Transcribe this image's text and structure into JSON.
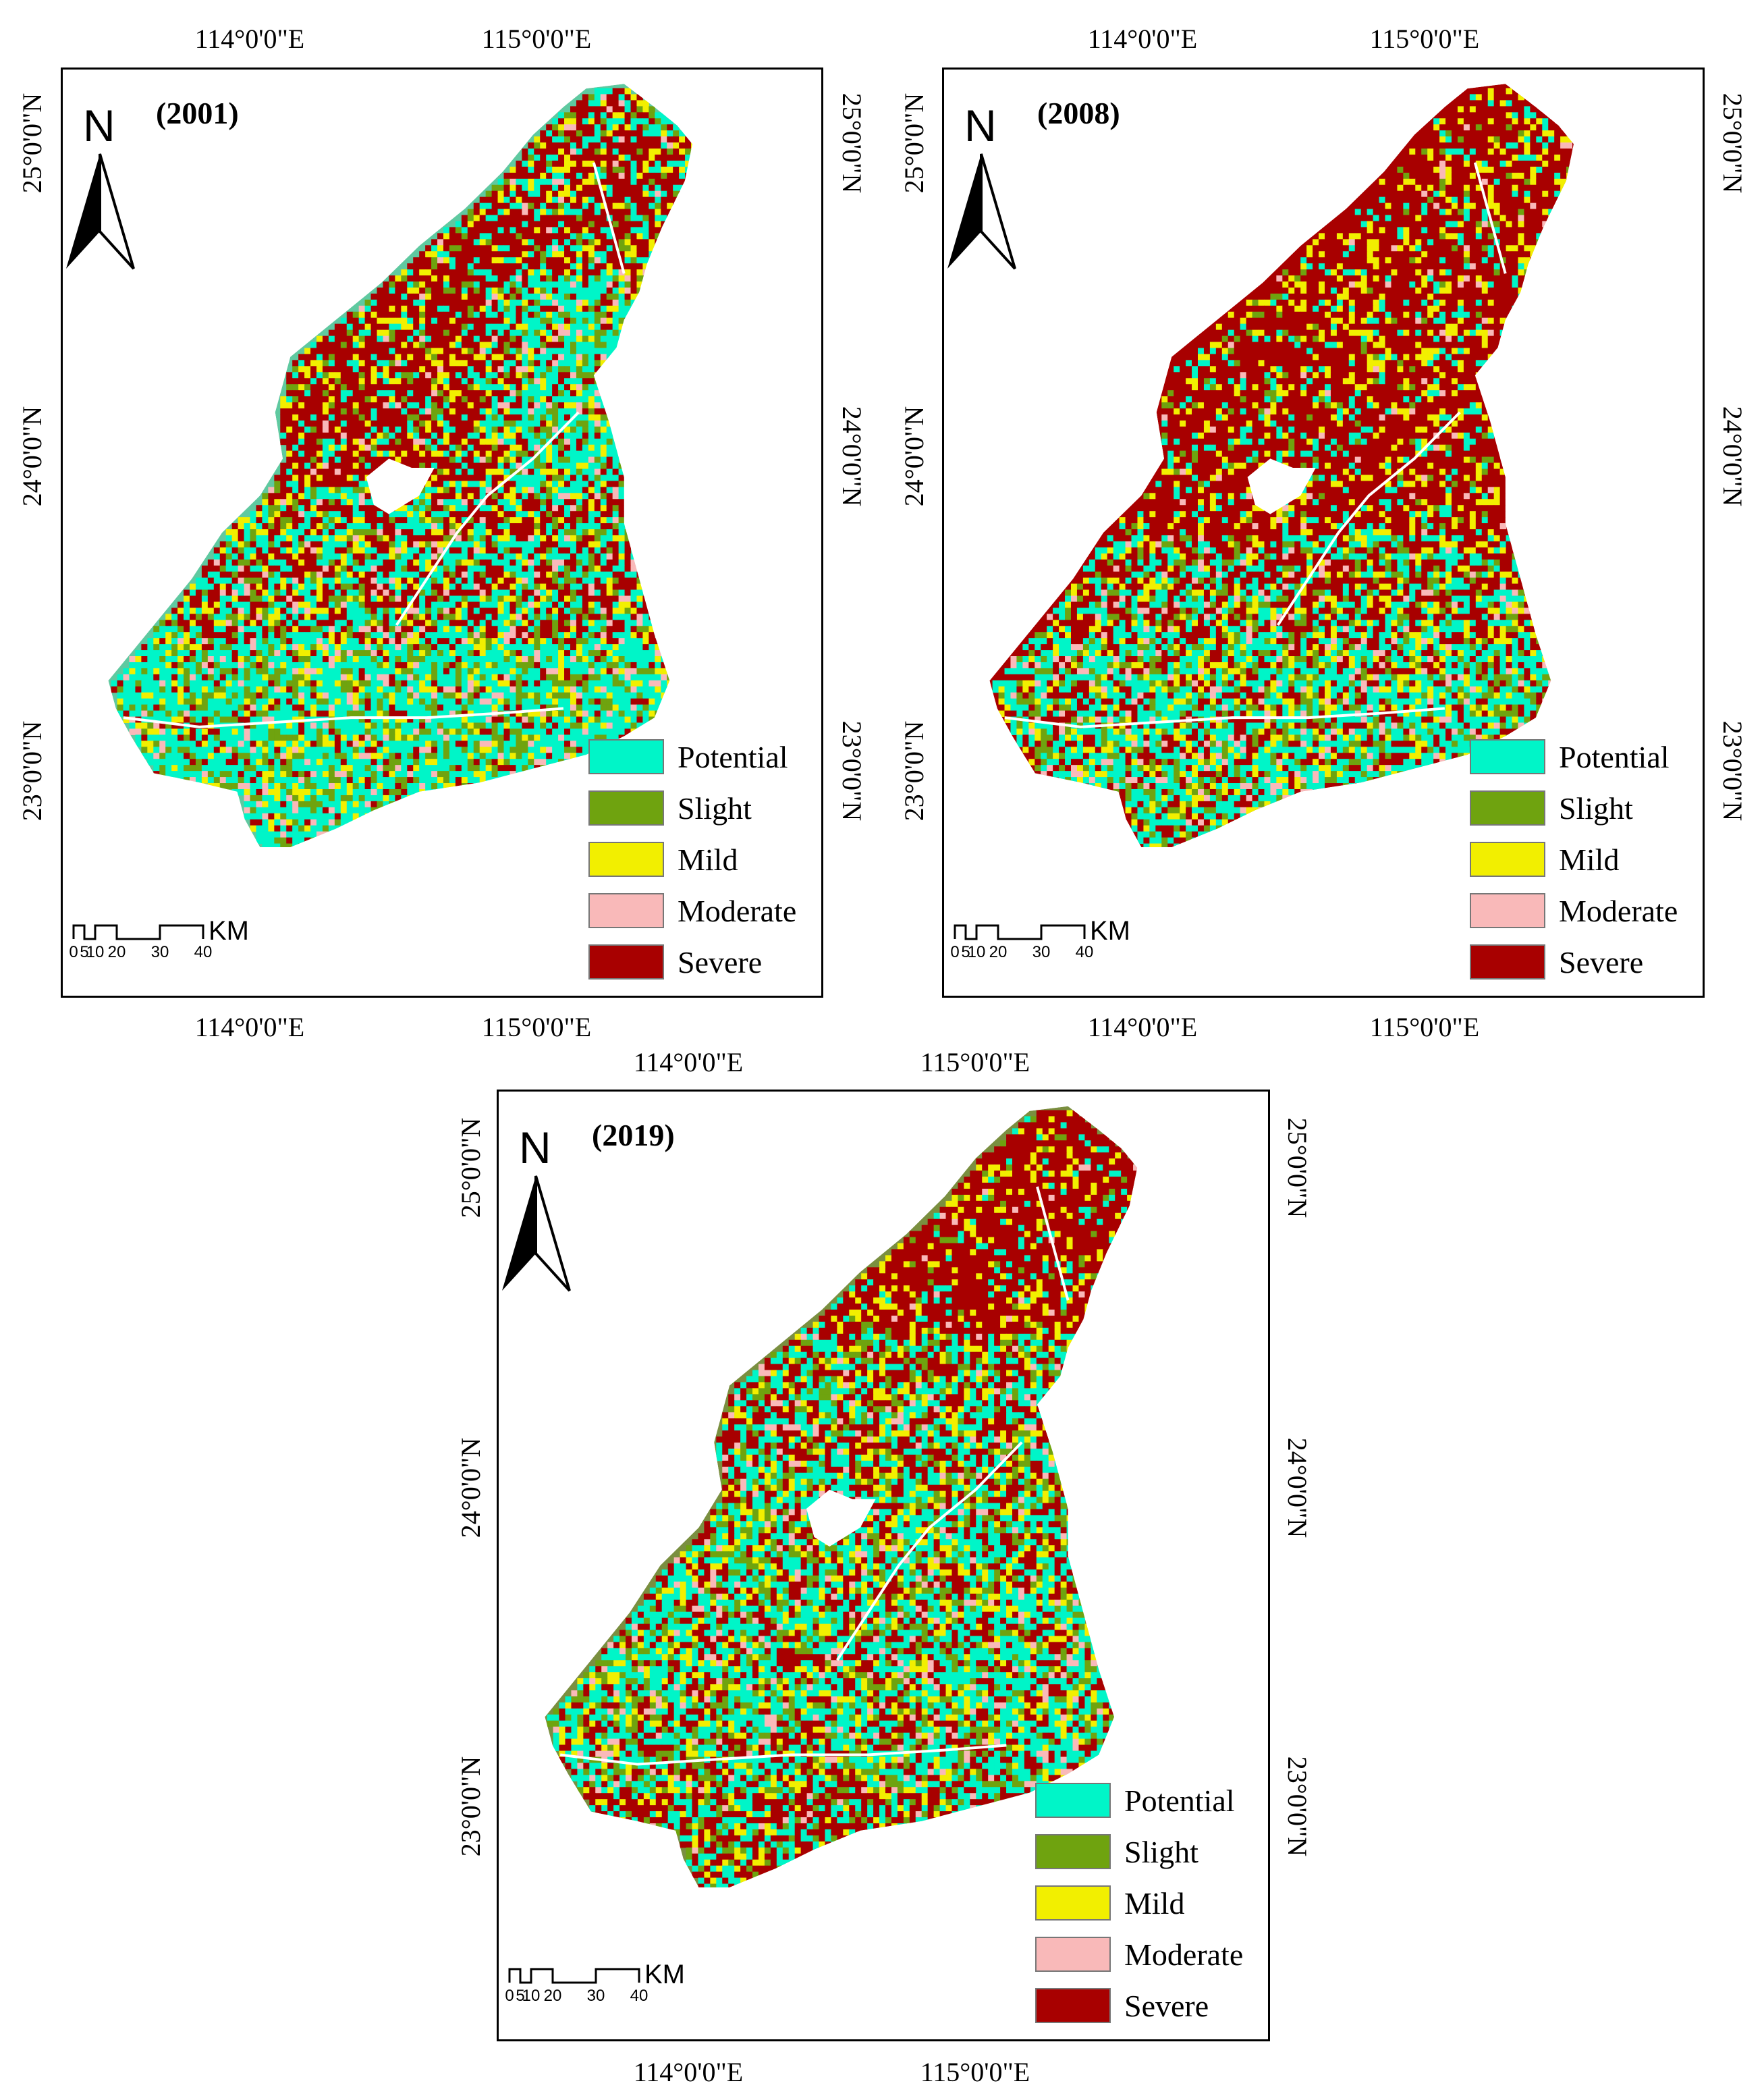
{
  "colors": {
    "potential": "#00f5c8",
    "slight": "#6fa30f",
    "mild": "#f2ef00",
    "moderate": "#f9b9b9",
    "severe": "#a80000",
    "frame": "#000000"
  },
  "legend": [
    {
      "key": "potential",
      "label": "Potential"
    },
    {
      "key": "slight",
      "label": "Slight"
    },
    {
      "key": "mild",
      "label": "Mild"
    },
    {
      "key": "moderate",
      "label": "Moderate"
    },
    {
      "key": "severe",
      "label": "Severe"
    }
  ],
  "axes": {
    "lon_labels": [
      "114°0'0\"E",
      "115°0'0\"E"
    ],
    "lat_labels": [
      "25°0'0\"N",
      "24°0'0\"N",
      "23°0'0\"N"
    ]
  },
  "north_arrow": {
    "letter": "N"
  },
  "scale_bar": {
    "unit": "KM",
    "ticks": [
      "0",
      "5",
      "10",
      "20",
      "30",
      "40"
    ]
  },
  "maps": [
    {
      "year": "(2001)",
      "dominant": "mixed: potential in south and east, severe in north-west"
    },
    {
      "year": "(2008)",
      "dominant": "mostly severe, potential and slight in the south"
    },
    {
      "year": "(2019)",
      "dominant": "severe in north-east, mixed potential and slight elsewhere"
    }
  ]
}
